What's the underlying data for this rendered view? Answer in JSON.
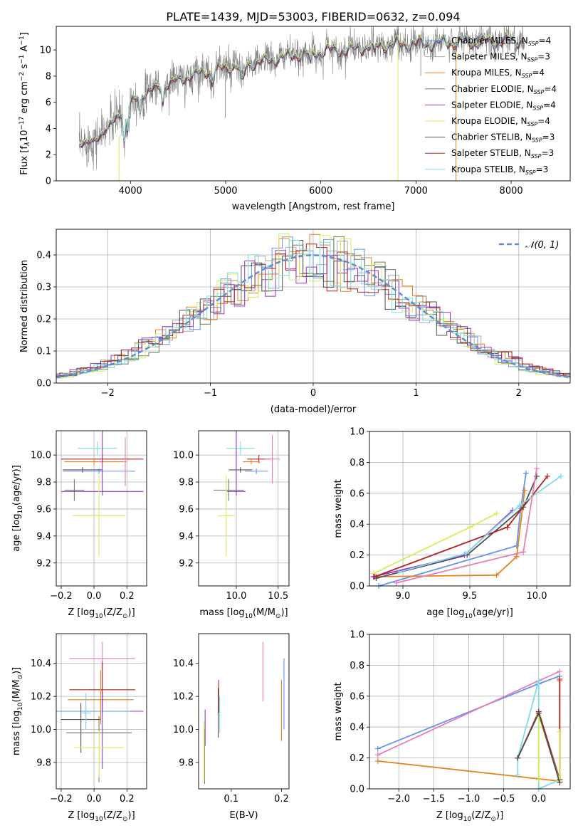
{
  "figure": {
    "title": "PLATE=1439, MJD=53003, FIBERID=0632, z=0.094"
  },
  "colors": {
    "Chabrier MILES": "#6495ed",
    "Salpeter MILES": "#a9a9a9",
    "Kroupa MILES": "#e6821e",
    "Chabrier ELODIE": "#708060",
    "Salpeter ELODIE": "#9932cc",
    "Kroupa ELODIE": "#d4ed5a",
    "Chabrier STELIB": "#505050",
    "Salpeter STELIB": "#b22222",
    "Kroupa STELIB": "#7fdce6",
    "Normal": "#5b8fd6",
    "extra_pink": "#e87eb5"
  },
  "chart_data": [
    {
      "id": "spectrum",
      "type": "line",
      "xlabel": "wavelength [Angstrom, rest frame]",
      "ylabel": "Flux [f$_\\lambda$10$^{-17}$ erg cm$^{-2}$ s$^{-1}$ A$^{-1}$]",
      "ylabel_parts": [
        "Flux [f",
        "λ",
        "10",
        "−17",
        " erg cm",
        "−2",
        " s",
        "−1",
        " A",
        "−1",
        "]"
      ],
      "xlim": [
        3220,
        8620
      ],
      "ylim": [
        0,
        11.8
      ],
      "xticks": [
        4000,
        5000,
        6000,
        7000,
        8000
      ],
      "yticks": [
        0,
        2,
        4,
        6,
        8,
        10
      ],
      "legend_position": "upper-right",
      "series": [
        {
          "name": "Chabrier MILES",
          "nssp": "4",
          "color_key": "Chabrier MILES"
        },
        {
          "name": "Salpeter MILES",
          "nssp": "3",
          "color_key": "Salpeter MILES"
        },
        {
          "name": "Kroupa MILES",
          "nssp": "4",
          "color_key": "Kroupa MILES"
        },
        {
          "name": "Chabrier ELODIE",
          "nssp": "4",
          "color_key": "Chabrier ELODIE"
        },
        {
          "name": "Salpeter ELODIE",
          "nssp": "4",
          "color_key": "Salpeter ELODIE"
        },
        {
          "name": "Kroupa ELODIE",
          "nssp": "4",
          "color_key": "Kroupa ELODIE"
        },
        {
          "name": "Chabrier STELIB",
          "nssp": "3",
          "color_key": "Chabrier STELIB"
        },
        {
          "name": "Salpeter STELIB",
          "nssp": "3",
          "color_key": "Salpeter STELIB"
        },
        {
          "name": "Kroupa STELIB",
          "nssp": "3",
          "color_key": "Kroupa STELIB"
        }
      ],
      "continuum": {
        "x": [
          3450,
          3550,
          3650,
          3750,
          3850,
          3950,
          4050,
          4150,
          4300,
          4500,
          4700,
          4900,
          5100,
          5300,
          5500,
          5700,
          5900,
          6100,
          6300,
          6500,
          6700,
          6900,
          7100,
          7300,
          7500,
          7700,
          7900,
          8100
        ],
        "y": [
          2.7,
          2.9,
          3.3,
          3.9,
          4.9,
          5.6,
          6.3,
          6.7,
          7.2,
          7.7,
          8.2,
          8.5,
          8.8,
          9.0,
          9.3,
          9.6,
          9.8,
          10.0,
          10.0,
          10.3,
          10.4,
          10.5,
          10.5,
          10.6,
          10.6,
          10.6,
          10.7,
          10.8
        ]
      }
    },
    {
      "id": "residuals",
      "type": "histogram",
      "xlabel": "(data-model)/error",
      "ylabel": "Normed distribution",
      "xlim": [
        -2.5,
        2.5
      ],
      "ylim": [
        0,
        0.48
      ],
      "xticks": [
        -2,
        -1,
        0,
        1,
        2
      ],
      "yticks": [
        0,
        0.1,
        0.2,
        0.3,
        0.4
      ],
      "legend": "𝒩(0, 1)",
      "legend_position": "upper-right",
      "bin_width": 0.1,
      "grid": true
    },
    {
      "id": "age_vs_Z",
      "type": "errorbar",
      "xlabel_parts": [
        "Z [log",
        "10",
        "(Z/Z",
        "⊙",
        ")]"
      ],
      "ylabel_parts": [
        "age  [log",
        "10",
        "(age/yr)]"
      ],
      "xlim": [
        -0.23,
        0.32
      ],
      "ylim": [
        9.03,
        10.18
      ],
      "xticks": [
        -0.2,
        0.0,
        0.2
      ],
      "yticks": [
        9.2,
        9.4,
        9.6,
        9.8,
        10.0
      ],
      "grid": true,
      "points": [
        {
          "c": "Kroupa STELIB",
          "x": 0.02,
          "xe": 0.12,
          "y": 10.05,
          "ye": [
            0.05,
            0.05
          ]
        },
        {
          "c": "Salpeter STELIB",
          "x": 0.05,
          "xe": 0.25,
          "y": 9.97,
          "ye": [
            0.03,
            0.03
          ]
        },
        {
          "c": "Kroupa MILES",
          "x": 0.0,
          "xe": 0.18,
          "y": 9.95,
          "ye": [
            0.02,
            0.02
          ]
        },
        {
          "c": "Chabrier MILES",
          "x": 0.03,
          "xe": 0.22,
          "y": 9.88,
          "ye": [
            0.02,
            0.02
          ]
        },
        {
          "c": "Chabrier STELIB",
          "x": -0.07,
          "xe": 0.12,
          "y": 9.89,
          "ye": [
            0.02,
            0.02
          ]
        },
        {
          "c": "Salpeter ELODIE",
          "x": 0.05,
          "xe": 0.25,
          "y": 9.73,
          "ye": [
            0.03,
            0.64
          ]
        },
        {
          "c": "Chabrier ELODIE",
          "x": -0.12,
          "xe": 0.06,
          "y": 9.74,
          "ye": [
            0.08,
            0.08
          ]
        },
        {
          "c": "Kroupa ELODIE",
          "x": 0.03,
          "xe": 0.16,
          "y": 9.55,
          "ye": [
            0.3,
            0.3
          ]
        },
        {
          "c": "extra_pink",
          "x": 0.19,
          "xe": 0.01,
          "y": 9.95,
          "ye": [
            0.18,
            0.18
          ]
        }
      ]
    },
    {
      "id": "age_vs_mass",
      "type": "errorbar",
      "xlabel_parts": [
        "mass [log",
        "10",
        "(M/M",
        "⊙",
        ")]"
      ],
      "xlim": [
        9.55,
        10.63
      ],
      "ylim": [
        9.03,
        10.18
      ],
      "xticks": [
        10.0,
        10.5
      ],
      "yticks": [
        9.2,
        9.4,
        9.6,
        9.8,
        10.0
      ],
      "grid": true,
      "points": [
        {
          "c": "Kroupa STELIB",
          "x": 10.05,
          "xe": 0.17,
          "y": 10.05,
          "ye": [
            0.05,
            0.05
          ]
        },
        {
          "c": "Salpeter STELIB",
          "x": 10.27,
          "xe": 0.14,
          "y": 9.97,
          "ye": [
            0.03,
            0.03
          ]
        },
        {
          "c": "Kroupa MILES",
          "x": 10.18,
          "xe": 0.1,
          "y": 9.95,
          "ye": [
            0.02,
            0.02
          ]
        },
        {
          "c": "Chabrier MILES",
          "x": 10.24,
          "xe": 0.14,
          "y": 9.88,
          "ye": [
            0.02,
            0.02
          ]
        },
        {
          "c": "Chabrier STELIB",
          "x": 10.05,
          "xe": 0.14,
          "y": 9.89,
          "ye": [
            0.02,
            0.02
          ]
        },
        {
          "c": "Salpeter ELODIE",
          "x": 10.0,
          "xe": 0.11,
          "y": 9.73,
          "ye": [
            0.03,
            0.64
          ]
        },
        {
          "c": "Chabrier ELODIE",
          "x": 9.91,
          "xe": 0.18,
          "y": 9.74,
          "ye": [
            0.08,
            0.08
          ]
        },
        {
          "c": "Kroupa ELODIE",
          "x": 9.88,
          "xe": 0.1,
          "y": 9.55,
          "ye": [
            0.3,
            0.3
          ]
        },
        {
          "c": "extra_pink",
          "x": 10.43,
          "xe": 0.09,
          "y": 9.97,
          "ye": [
            0.18,
            0.18
          ]
        }
      ]
    },
    {
      "id": "massweight_vs_age",
      "type": "line",
      "xlabel_parts": [
        "age  [log",
        "10",
        "(age/yr)]"
      ],
      "ylabel": "mass weight",
      "xlim": [
        8.75,
        10.25
      ],
      "ylim": [
        0,
        1.0
      ],
      "xticks": [
        9.0,
        9.5,
        10.0
      ],
      "yticks": [
        0.0,
        0.2,
        0.4,
        0.6,
        0.8,
        1.0
      ],
      "grid": true,
      "lines": [
        {
          "c": "Chabrier MILES",
          "x": [
            8.82,
            9.85,
            9.88,
            9.92
          ],
          "y": [
            0.0,
            0.26,
            0.5,
            0.73
          ]
        },
        {
          "c": "Kroupa MILES",
          "x": [
            8.8,
            9.7,
            9.85,
            9.91
          ],
          "y": [
            0.06,
            0.07,
            0.19,
            0.62
          ]
        },
        {
          "c": "Kroupa ELODIE",
          "x": [
            8.78,
            9.5,
            9.7
          ],
          "y": [
            0.08,
            0.38,
            0.47
          ]
        },
        {
          "c": "Chabrier STELIB",
          "x": [
            8.8,
            9.48,
            9.9,
            10.0
          ],
          "y": [
            0.05,
            0.2,
            0.51,
            0.71
          ]
        },
        {
          "c": "Salpeter ELODIE",
          "x": [
            8.78,
            9.46,
            9.82
          ],
          "y": [
            0.06,
            0.2,
            0.49
          ]
        },
        {
          "c": "Salpeter STELIB",
          "x": [
            8.79,
            9.78,
            10.08
          ],
          "y": [
            0.06,
            0.38,
            0.71
          ]
        },
        {
          "c": "Kroupa STELIB",
          "x": [
            8.97,
            9.47,
            9.87,
            10.18
          ],
          "y": [
            0.09,
            0.21,
            0.52,
            0.71
          ]
        },
        {
          "c": "extra_pink",
          "x": [
            8.95,
            9.9,
            10.0
          ],
          "y": [
            0.02,
            0.22,
            0.76
          ]
        }
      ]
    },
    {
      "id": "mass_vs_Z",
      "type": "errorbar",
      "xlabel_parts": [
        "Z [log",
        "10",
        "(Z/Z",
        "⊙",
        ")]"
      ],
      "ylabel_parts": [
        "mass [log",
        "10",
        "(M/M",
        "⊙",
        ")]"
      ],
      "xlim": [
        -0.23,
        0.32
      ],
      "ylim": [
        9.64,
        10.58
      ],
      "xticks": [
        -0.2,
        0.0,
        0.2
      ],
      "yticks": [
        9.8,
        10.0,
        10.2,
        10.4
      ],
      "grid": true,
      "points": [
        {
          "c": "extra_pink",
          "x": 0.05,
          "xe": 0.2,
          "y": 10.43,
          "ye": [
            0.26,
            0.1
          ]
        },
        {
          "c": "Salpeter STELIB",
          "x": 0.05,
          "xe": 0.2,
          "y": 10.24,
          "ye": [
            0.14,
            0.17
          ]
        },
        {
          "c": "Kroupa MILES",
          "x": 0.04,
          "xe": 0.2,
          "y": 10.18,
          "ye": [
            0.15,
            0.18
          ]
        },
        {
          "c": "Salpeter ELODIE",
          "x": 0.05,
          "xe": 0.25,
          "y": 10.11,
          "ye": [
            0.35,
            0.1
          ]
        },
        {
          "c": "Chabrier MILES",
          "x": -0.05,
          "xe": 0.27,
          "y": 10.11,
          "ye": [
            0.1,
            0.1
          ]
        },
        {
          "c": "Chabrier STELIB",
          "x": -0.08,
          "xe": 0.12,
          "y": 10.06,
          "ye": [
            0.2,
            0.1
          ]
        },
        {
          "c": "Chabrier ELODIE",
          "x": 0.03,
          "xe": 0.2,
          "y": 9.98,
          "ye": [
            0.3,
            0.1
          ]
        },
        {
          "c": "Kroupa ELODIE",
          "x": 0.03,
          "xe": 0.15,
          "y": 9.89,
          "ye": [
            0.18,
            0.1
          ]
        },
        {
          "c": "Kroupa STELIB",
          "x": -0.05,
          "xe": 0.03,
          "y": 10.1,
          "ye": [
            0.1,
            0.12
          ]
        }
      ]
    },
    {
      "id": "mass_vs_EBV",
      "type": "errorbar",
      "xlabel": "E(B-V)",
      "xlim": [
        0.035,
        0.215
      ],
      "ylim": [
        9.64,
        10.58
      ],
      "xticks": [
        0.1,
        0.2
      ],
      "yticks": [
        9.8,
        10.0,
        10.2,
        10.4
      ],
      "grid": false,
      "points": [
        {
          "c": "extra_pink",
          "x": 0.163,
          "xe": 0,
          "y": 10.35,
          "ye": [
            0.18,
            0.18
          ]
        },
        {
          "c": "Salpeter STELIB",
          "x": 0.075,
          "xe": 0,
          "y": 10.2,
          "ye": [
            0.1,
            0.1
          ]
        },
        {
          "c": "Kroupa MILES",
          "x": 0.2,
          "xe": 0,
          "y": 10.2,
          "ye": [
            0.27,
            0.1
          ]
        },
        {
          "c": "Chabrier MILES",
          "x": 0.205,
          "xe": 0,
          "y": 10.2,
          "ye": [
            0.2,
            0.23
          ]
        },
        {
          "c": "Salpeter ELODIE",
          "x": 0.048,
          "xe": 0,
          "y": 10.0,
          "ye": [
            0.1,
            0.12
          ]
        },
        {
          "c": "Chabrier ELODIE",
          "x": 0.047,
          "xe": 0,
          "y": 9.85,
          "ye": [
            0.18,
            0.15
          ]
        },
        {
          "c": "Kroupa ELODIE",
          "x": 0.046,
          "xe": 0,
          "y": 9.85,
          "ye": [
            0.16,
            0.2
          ]
        },
        {
          "c": "Kroupa STELIB",
          "x": 0.077,
          "xe": 0,
          "y": 10.1,
          "ye": [
            0.12,
            0.1
          ]
        },
        {
          "c": "Chabrier STELIB",
          "x": 0.074,
          "xe": 0,
          "y": 10.1,
          "ye": [
            0.15,
            0.15
          ]
        }
      ]
    },
    {
      "id": "massweight_vs_Z",
      "type": "line",
      "xlabel_parts": [
        "Z [log",
        "10",
        "(Z/Z",
        "⊙",
        ")]"
      ],
      "ylabel": "mass weight",
      "xlim": [
        -2.42,
        0.45
      ],
      "ylim": [
        0,
        1.0
      ],
      "xticks": [
        -2.0,
        -1.5,
        -1.0,
        -0.5,
        0.0
      ],
      "yticks": [
        0.0,
        0.2,
        0.4,
        0.6,
        0.8,
        1.0
      ],
      "grid": true,
      "lines": [
        {
          "c": "Chabrier MILES",
          "x": [
            -2.3,
            0.0,
            0.3
          ],
          "y": [
            0.26,
            0.68,
            0.73
          ]
        },
        {
          "c": "extra_pink",
          "x": [
            -2.3,
            0.0,
            0.3
          ],
          "y": [
            0.22,
            0.7,
            0.76
          ]
        },
        {
          "c": "Kroupa MILES",
          "x": [
            -2.3,
            0.3,
            0.3
          ],
          "y": [
            0.18,
            0.05,
            0.7
          ]
        },
        {
          "c": "Kroupa STELIB",
          "x": [
            -0.3,
            -0.3,
            0.0,
            0.0,
            0.3
          ],
          "y": [
            0.09,
            0.2,
            0.7,
            0.0,
            0.06
          ]
        },
        {
          "c": "Salpeter STELIB",
          "x": [
            -0.3,
            0.0,
            0.3,
            0.3
          ],
          "y": [
            0.2,
            0.5,
            0.06,
            0.71
          ]
        },
        {
          "c": "Kroupa ELODIE",
          "x": [
            0.0,
            0.0,
            0.3,
            0.3
          ],
          "y": [
            0.06,
            0.47,
            0.05,
            0.37
          ]
        },
        {
          "c": "Chabrier STELIB",
          "x": [
            -0.3,
            0.0,
            0.3
          ],
          "y": [
            0.2,
            0.49,
            0.04
          ]
        }
      ]
    }
  ]
}
